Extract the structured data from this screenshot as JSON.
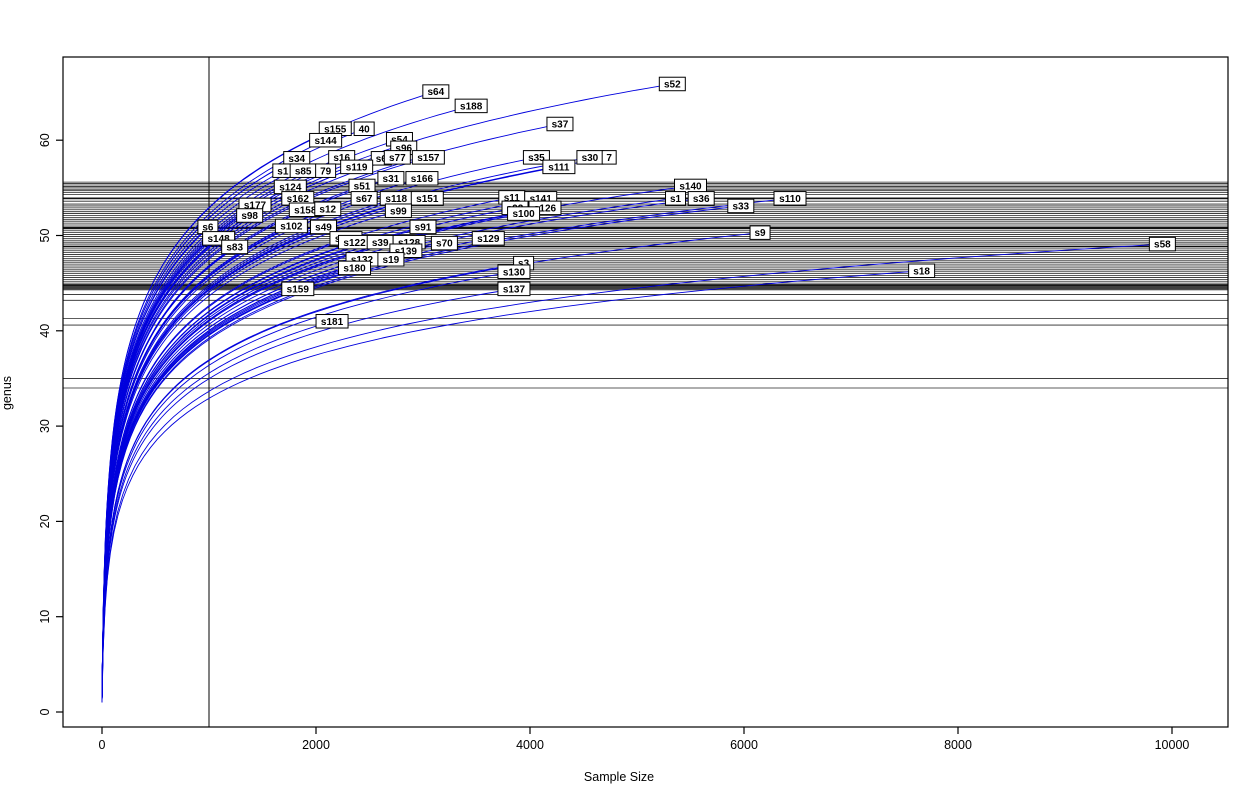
{
  "figure": {
    "background": "#ffffff"
  },
  "chart_data": {
    "type": "line",
    "subtype": "rarefaction-curves",
    "title": "",
    "xlabel": "Sample Size",
    "ylabel": "genus",
    "x_ticks": [
      0,
      2000,
      4000,
      6000,
      8000,
      10000
    ],
    "y_ticks": [
      0,
      10,
      20,
      30,
      40,
      50,
      60
    ],
    "xlim": [
      -350,
      10350
    ],
    "ylim": [
      -1.5,
      68.5
    ],
    "grid": false,
    "legend": "none",
    "curve_color": "#0000dd",
    "refline_color": "#000000",
    "label_box_fill": "#ffffff",
    "label_box_border": "#000000",
    "sample_vline": 1000,
    "hlines": [
      55.6,
      55.45,
      55.3,
      55.15,
      55.0,
      54.85,
      54.7,
      54.5,
      54.3,
      53.95,
      53.9,
      53.85,
      53.6,
      53.3,
      53.1,
      52.9,
      52.7,
      52.5,
      52.3,
      52.1,
      51.9,
      51.7,
      51.5,
      51.3,
      51.1,
      50.9,
      50.85,
      50.8,
      50.75,
      50.7,
      50.5,
      50.3,
      50.1,
      49.9,
      49.7,
      49.5,
      49.3,
      49.1,
      48.9,
      48.85,
      48.8,
      48.6,
      48.4,
      48.2,
      48.0,
      47.8,
      47.6,
      47.4,
      47.2,
      47.0,
      46.8,
      46.6,
      46.4,
      46.2,
      46.0,
      45.8,
      45.6,
      45.4,
      45.2,
      45.0,
      44.85,
      44.8,
      44.75,
      44.7,
      44.6,
      44.5,
      44.4,
      44.3,
      43.8,
      43.2,
      41.3,
      40.6,
      35.0,
      34.0
    ],
    "series": [
      {
        "label": "s52",
        "x": 5330,
        "y": 65.9
      },
      {
        "label": "s64",
        "x": 3120,
        "y": 65.1
      },
      {
        "label": "s188",
        "x": 3450,
        "y": 63.6
      },
      {
        "label": "s37",
        "x": 4280,
        "y": 61.7
      },
      {
        "label": "s155",
        "x": 2180,
        "y": 61.2
      },
      {
        "label": "40",
        "x": 2450,
        "y": 61.2
      },
      {
        "label": "s144",
        "x": 2090,
        "y": 60.0
      },
      {
        "label": "s54",
        "x": 2780,
        "y": 60.1
      },
      {
        "label": "s96",
        "x": 2820,
        "y": 59.2
      },
      {
        "label": "s34",
        "x": 1820,
        "y": 58.1
      },
      {
        "label": "s16",
        "x": 2240,
        "y": 58.2
      },
      {
        "label": "s6",
        "x": 2610,
        "y": 58.1
      },
      {
        "label": "s77",
        "x": 2760,
        "y": 58.2
      },
      {
        "label": "s157",
        "x": 3050,
        "y": 58.2
      },
      {
        "label": "s35",
        "x": 4060,
        "y": 58.2
      },
      {
        "label": "s30",
        "x": 4560,
        "y": 58.2
      },
      {
        "label": "7",
        "x": 4740,
        "y": 58.2
      },
      {
        "label": "s111",
        "x": 4270,
        "y": 57.2
      },
      {
        "label": "s1",
        "x": 1690,
        "y": 56.8
      },
      {
        "label": "s85",
        "x": 1880,
        "y": 56.8
      },
      {
        "label": "79",
        "x": 2090,
        "y": 56.8
      },
      {
        "label": "s119",
        "x": 2380,
        "y": 57.2
      },
      {
        "label": "s31",
        "x": 2700,
        "y": 56.0
      },
      {
        "label": "s166",
        "x": 2990,
        "y": 56.0
      },
      {
        "label": "s124",
        "x": 1760,
        "y": 55.1
      },
      {
        "label": "s51",
        "x": 2430,
        "y": 55.2
      },
      {
        "label": "s140",
        "x": 5500,
        "y": 55.2
      },
      {
        "label": "s162",
        "x": 1830,
        "y": 53.9
      },
      {
        "label": "s67",
        "x": 2450,
        "y": 53.9
      },
      {
        "label": "s118",
        "x": 2750,
        "y": 53.9
      },
      {
        "label": "s151",
        "x": 3040,
        "y": 53.9
      },
      {
        "label": "s11",
        "x": 3830,
        "y": 54.0
      },
      {
        "label": "s141",
        "x": 4100,
        "y": 53.9
      },
      {
        "label": "s1",
        "x": 5360,
        "y": 53.9
      },
      {
        "label": "s36",
        "x": 5600,
        "y": 53.9
      },
      {
        "label": "s110",
        "x": 6430,
        "y": 53.9
      },
      {
        "label": "s33",
        "x": 5970,
        "y": 53.1
      },
      {
        "label": "s92",
        "x": 3860,
        "y": 52.9
      },
      {
        "label": "s126",
        "x": 4140,
        "y": 52.9
      },
      {
        "label": "s100",
        "x": 3940,
        "y": 52.3
      },
      {
        "label": "s177",
        "x": 1430,
        "y": 53.2
      },
      {
        "label": "s98",
        "x": 1380,
        "y": 52.1
      },
      {
        "label": "s158",
        "x": 1900,
        "y": 52.7
      },
      {
        "label": "s12",
        "x": 2110,
        "y": 52.8
      },
      {
        "label": "s99",
        "x": 2770,
        "y": 52.6
      },
      {
        "label": "s91",
        "x": 3000,
        "y": 50.9
      },
      {
        "label": "s102",
        "x": 1770,
        "y": 51.0
      },
      {
        "label": "s49",
        "x": 2070,
        "y": 50.9
      },
      {
        "label": "s6",
        "x": 990,
        "y": 50.9
      },
      {
        "label": "s148",
        "x": 1090,
        "y": 49.7
      },
      {
        "label": "s83",
        "x": 1240,
        "y": 48.8
      },
      {
        "label": "s161",
        "x": 2280,
        "y": 49.7
      },
      {
        "label": "s122",
        "x": 2360,
        "y": 49.3
      },
      {
        "label": "s39",
        "x": 2600,
        "y": 49.3
      },
      {
        "label": "s128",
        "x": 2870,
        "y": 49.3
      },
      {
        "label": "s139",
        "x": 2840,
        "y": 48.4
      },
      {
        "label": "s70",
        "x": 3200,
        "y": 49.2
      },
      {
        "label": "s129",
        "x": 3610,
        "y": 49.7
      },
      {
        "label": "s9",
        "x": 6150,
        "y": 50.3
      },
      {
        "label": "s58",
        "x": 9910,
        "y": 49.1
      },
      {
        "label": "s132",
        "x": 2430,
        "y": 47.5
      },
      {
        "label": "s19",
        "x": 2700,
        "y": 47.5
      },
      {
        "label": "s180",
        "x": 2360,
        "y": 46.6
      },
      {
        "label": "s3",
        "x": 3940,
        "y": 47.1
      },
      {
        "label": "s130",
        "x": 3850,
        "y": 46.2
      },
      {
        "label": "s18",
        "x": 7660,
        "y": 46.3
      },
      {
        "label": "s159",
        "x": 1830,
        "y": 44.4
      },
      {
        "label": "s137",
        "x": 3850,
        "y": 44.4
      },
      {
        "label": "s181",
        "x": 2150,
        "y": 41.0
      }
    ]
  }
}
